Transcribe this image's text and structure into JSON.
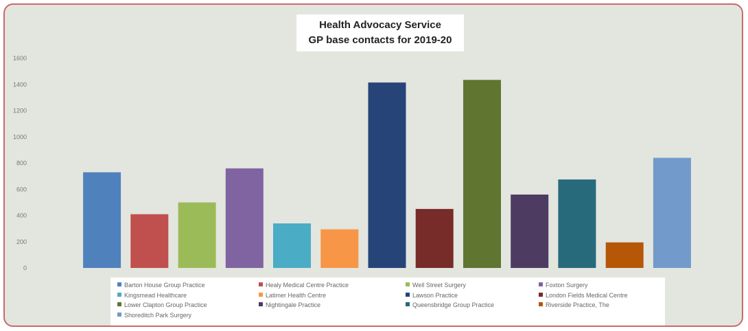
{
  "chart_data": {
    "type": "bar",
    "title_line1": "Health Advocacy Service",
    "title_line2": "GP base contacts for 2019-20",
    "ylim": [
      0,
      1600
    ],
    "yticks": [
      0,
      200,
      400,
      600,
      800,
      1000,
      1200,
      1400,
      1600
    ],
    "grid": false,
    "legend_position": "bottom",
    "series": [
      {
        "name": "Barton House Group Practice",
        "value": 730,
        "color": "#4f81bd"
      },
      {
        "name": "Healy Medical Centre Practice",
        "value": 410,
        "color": "#c0504d"
      },
      {
        "name": "Well Street Surgery",
        "value": 500,
        "color": "#9bbb59"
      },
      {
        "name": "Foxton Surgery",
        "value": 760,
        "color": "#8064a2"
      },
      {
        "name": "Kingsmead Healthcare",
        "value": 340,
        "color": "#4bacc6"
      },
      {
        "name": "Latimer Health Centre",
        "value": 295,
        "color": "#f79646"
      },
      {
        "name": "Lawson Practice",
        "value": 1415,
        "color": "#264478"
      },
      {
        "name": "London Fields Medical Centre",
        "value": 450,
        "color": "#772c2a"
      },
      {
        "name": "Lower Clapton Group Practice",
        "value": 1435,
        "color": "#5f7530"
      },
      {
        "name": "Nightingale Practice",
        "value": 560,
        "color": "#4d3b62"
      },
      {
        "name": "Queensbridge Group Practice",
        "value": 675,
        "color": "#276a7c"
      },
      {
        "name": "Riverside Practice, The",
        "value": 195,
        "color": "#b65708"
      },
      {
        "name": "Shoreditch Park Surgery",
        "value": 840,
        "color": "#729aca"
      }
    ]
  }
}
